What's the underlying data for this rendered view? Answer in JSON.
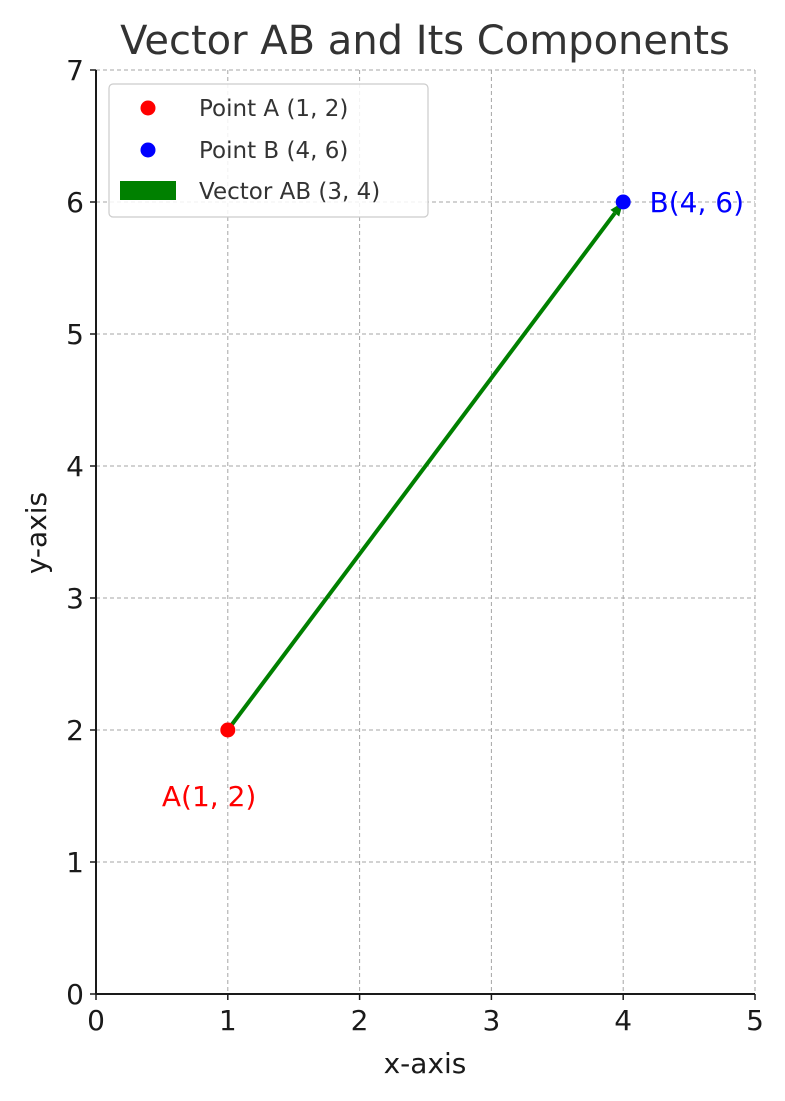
{
  "chart_data": {
    "type": "scatter",
    "title": "Vector AB and Its Components",
    "xlabel": "x-axis",
    "ylabel": "y-axis",
    "xlim": [
      0,
      5
    ],
    "ylim": [
      0,
      7
    ],
    "x_ticks": [
      0,
      1,
      2,
      3,
      4,
      5
    ],
    "y_ticks": [
      0,
      1,
      2,
      3,
      4,
      5,
      6,
      7
    ],
    "grid": true,
    "legend_position": "top-left",
    "points": [
      {
        "name": "Point A (1, 2)",
        "x": 1,
        "y": 2,
        "color": "#ff0000"
      },
      {
        "name": "Point B (4, 6)",
        "x": 4,
        "y": 6,
        "color": "#0000ff"
      }
    ],
    "vector": {
      "name": "Vector AB (3, 4)",
      "from": [
        1,
        2
      ],
      "to": [
        4,
        6
      ],
      "color": "#008000"
    },
    "annotations": [
      {
        "text": "A(1, 2)",
        "x": 0.5,
        "y": 1.5,
        "color": "#ff0000"
      },
      {
        "text": "B(4, 6)",
        "x": 4.2,
        "y": 6.0,
        "color": "#0000ff"
      }
    ]
  }
}
